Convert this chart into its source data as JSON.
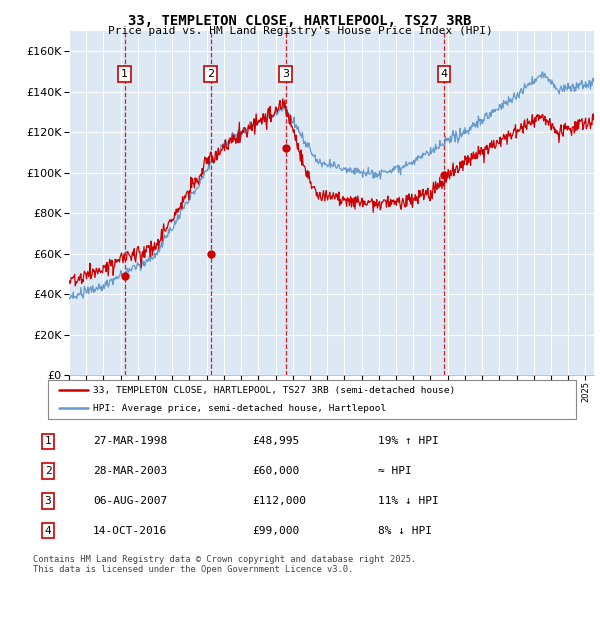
{
  "title": "33, TEMPLETON CLOSE, HARTLEPOOL, TS27 3RB",
  "subtitle": "Price paid vs. HM Land Registry's House Price Index (HPI)",
  "ylim": [
    0,
    170000
  ],
  "yticks": [
    0,
    20000,
    40000,
    60000,
    80000,
    100000,
    120000,
    140000,
    160000
  ],
  "xlim_start": 1995.0,
  "xlim_end": 2025.5,
  "bg_color": "#dce9f5",
  "grid_color": "#ffffff",
  "sale_dates": [
    1998.23,
    2003.24,
    2007.59,
    2016.79
  ],
  "sale_prices": [
    48995,
    60000,
    112000,
    99000
  ],
  "sale_labels": [
    "1",
    "2",
    "3",
    "4"
  ],
  "legend_line1": "33, TEMPLETON CLOSE, HARTLEPOOL, TS27 3RB (semi-detached house)",
  "legend_line2": "HPI: Average price, semi-detached house, Hartlepool",
  "table_rows": [
    [
      "1",
      "27-MAR-1998",
      "£48,995",
      "19% ↑ HPI"
    ],
    [
      "2",
      "28-MAR-2003",
      "£60,000",
      "≈ HPI"
    ],
    [
      "3",
      "06-AUG-2007",
      "£112,000",
      "11% ↓ HPI"
    ],
    [
      "4",
      "14-OCT-2016",
      "£99,000",
      "8% ↓ HPI"
    ]
  ],
  "footer": "Contains HM Land Registry data © Crown copyright and database right 2025.\nThis data is licensed under the Open Government Licence v3.0.",
  "line_color_red": "#cc0000",
  "line_color_blue": "#6699cc",
  "dashed_color": "#cc0000"
}
